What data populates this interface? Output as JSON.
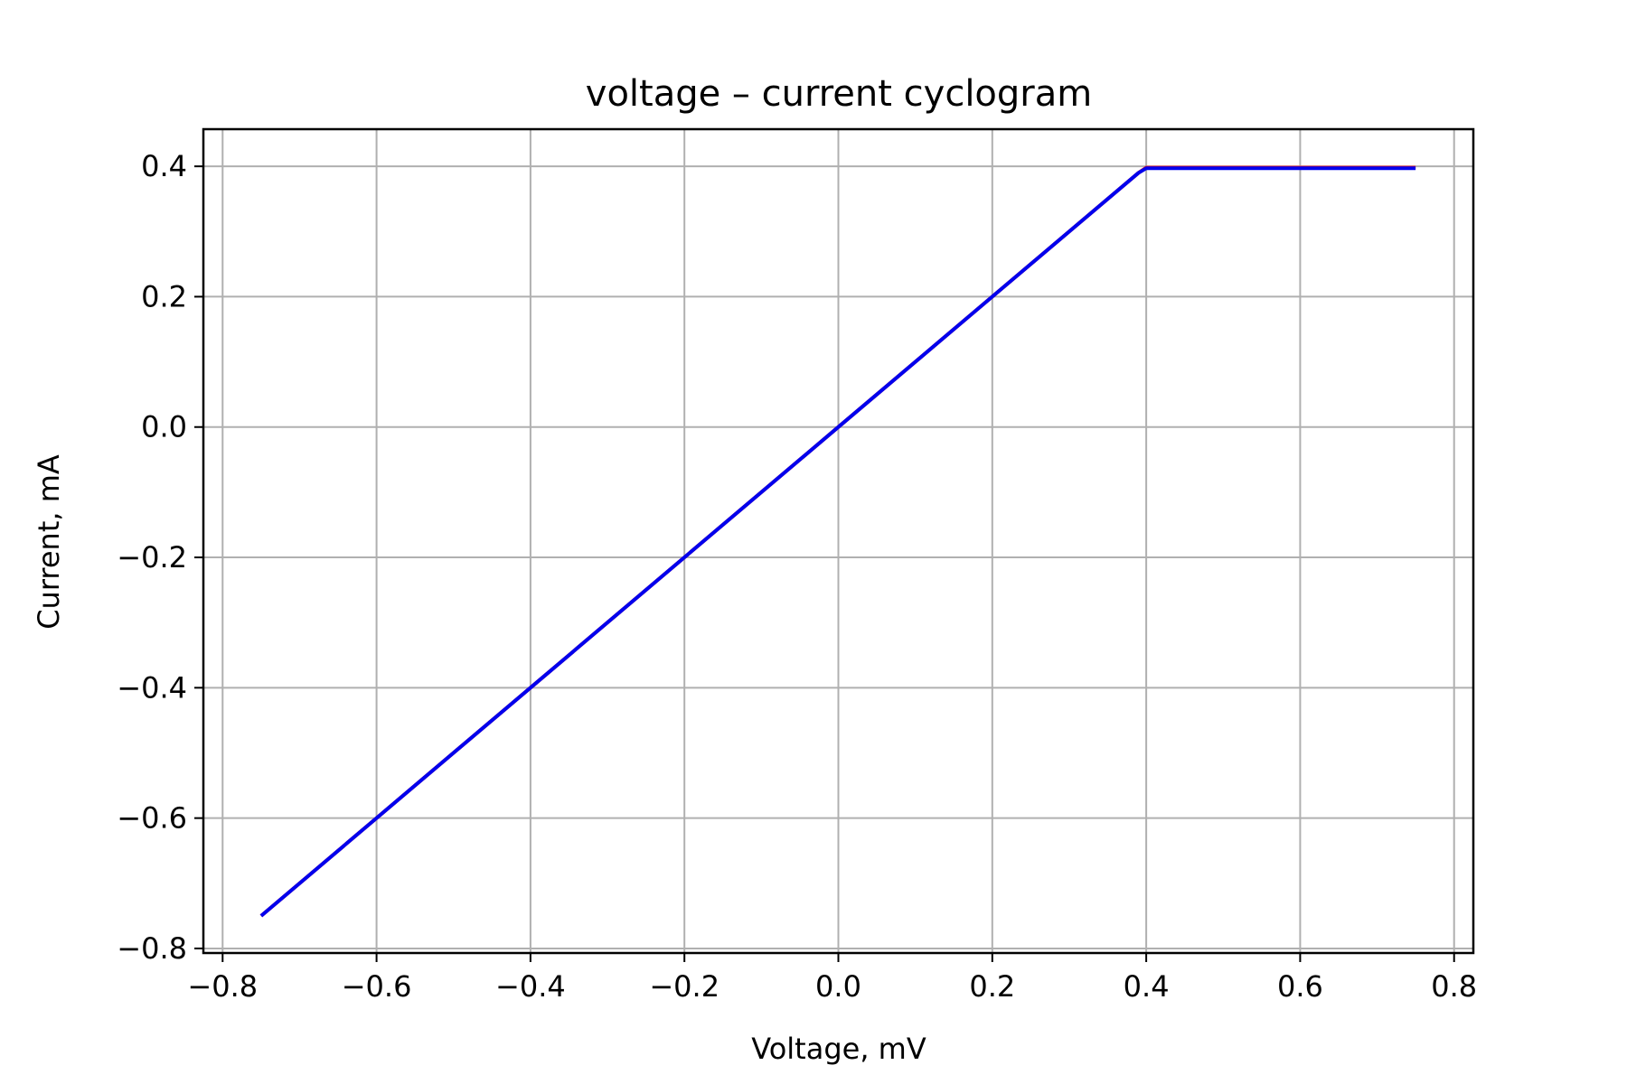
{
  "chart_data": {
    "type": "line",
    "title": "voltage – current cyclogram",
    "xlabel": "Voltage, mV",
    "ylabel": "Current, mA",
    "xlim": [
      -0.825,
      0.825
    ],
    "ylim": [
      -0.807,
      0.457
    ],
    "xticks": [
      -0.8,
      -0.6,
      -0.4,
      -0.2,
      0.0,
      0.2,
      0.4,
      0.6,
      0.8
    ],
    "xtick_labels": [
      "−0.8",
      "−0.6",
      "−0.4",
      "−0.2",
      "0.0",
      "0.2",
      "0.4",
      "0.6",
      "0.8"
    ],
    "yticks": [
      -0.8,
      -0.6,
      -0.4,
      -0.2,
      0.0,
      0.2,
      0.4
    ],
    "ytick_labels": [
      "−0.8",
      "−0.6",
      "−0.4",
      "−0.2",
      "0.0",
      "0.2",
      "0.4"
    ],
    "grid": true,
    "series": [
      {
        "color": "#ff0000",
        "x": [
          -0.75,
          -0.6,
          -0.4,
          -0.2,
          0.0,
          0.2,
          0.39,
          0.4,
          0.5,
          0.6,
          0.75
        ],
        "y": [
          -0.75,
          -0.6,
          -0.4,
          -0.2,
          0.0,
          0.2,
          0.39,
          0.398,
          0.398,
          0.398,
          0.398
        ]
      },
      {
        "color": "#0000ee",
        "x": [
          -0.75,
          -0.6,
          -0.4,
          -0.2,
          0.0,
          0.2,
          0.39,
          0.4,
          0.5,
          0.6,
          0.75
        ],
        "y": [
          -0.75,
          -0.6,
          -0.4,
          -0.2,
          0.0,
          0.2,
          0.39,
          0.397,
          0.397,
          0.397,
          0.397
        ]
      }
    ]
  }
}
